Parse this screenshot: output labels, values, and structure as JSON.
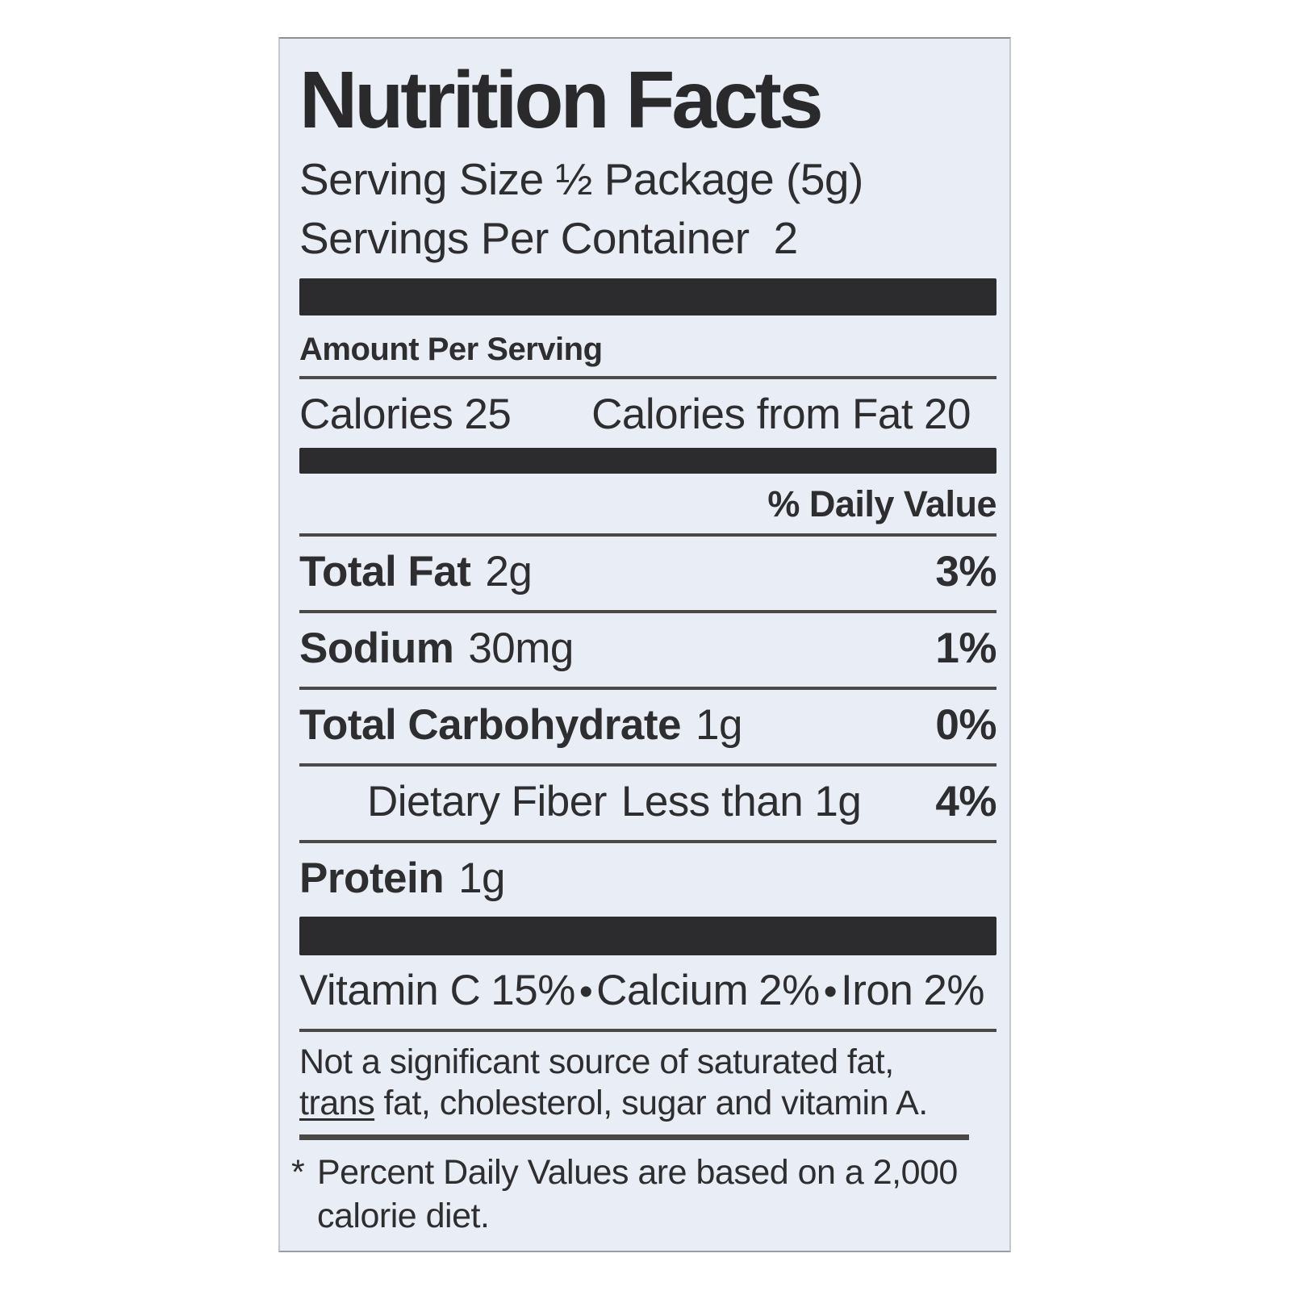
{
  "colors": {
    "label_bg": "#e9edf5",
    "text": "#2e2e30",
    "thick_bar": "#2c2c2e",
    "thin_rule": "#4b4947",
    "page_bg": "#ffffff"
  },
  "label": {
    "title": "Nutrition Facts",
    "serving_size": "Serving Size ½ Package (5g)",
    "servings_label": "Servings Per Container",
    "servings_value": "2",
    "amount_per_serving": "Amount Per Serving",
    "calories": {
      "label": "Calories",
      "value": "25",
      "from_fat_label": "Calories from Fat",
      "from_fat_value": "20"
    },
    "daily_value_header": "% Daily Value",
    "nutrients": [
      {
        "name": "Total Fat",
        "amount": "2g",
        "dv": "3%"
      },
      {
        "name": "Sodium",
        "amount": "30mg",
        "dv": "1%"
      },
      {
        "name": "Total Carbohydrate",
        "amount": "1g",
        "dv": "0%"
      },
      {
        "name": "Dietary Fiber",
        "amount": "Less than 1g",
        "dv": "4%"
      },
      {
        "name": "Protein",
        "amount": "1g"
      }
    ],
    "vitamins": [
      {
        "name": "Vitamin C",
        "value": "15%"
      },
      {
        "name": "Calcium",
        "value": "2%"
      },
      {
        "name": "Iron",
        "value": "2%"
      }
    ],
    "vitamin_separator": "•",
    "disclaimer": {
      "before_trans": "Not a significant source of saturated fat,\n",
      "trans_word": "trans",
      "after_trans": " fat, cholesterol, sugar and vitamin A."
    },
    "footnote": {
      "marker": "*",
      "text": "Percent Daily Values are based on a 2,000\ncalorie diet."
    }
  }
}
